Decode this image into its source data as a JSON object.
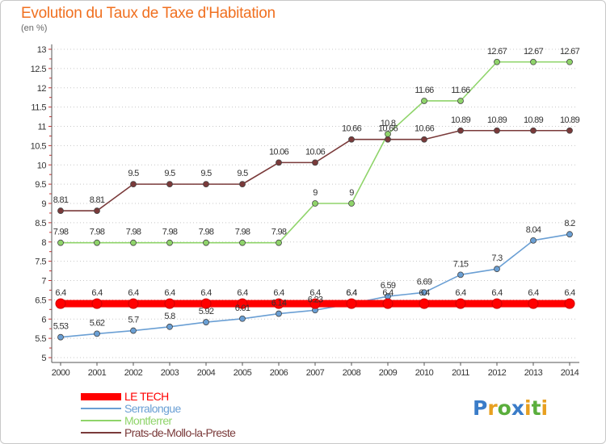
{
  "title": "Evolution du Taux de Taxe d'Habitation",
  "subtitle": "(en %)",
  "logo": {
    "letters": [
      {
        "ch": "P",
        "color": "#3a7cc8"
      },
      {
        "ch": "r",
        "color": "#e8a020"
      },
      {
        "ch": "o",
        "color": "#5aae3c"
      },
      {
        "ch": "x",
        "color": "#3a7cc8"
      },
      {
        "ch": "i",
        "color": "#e8a020"
      },
      {
        "ch": "t",
        "color": "#5aae3c"
      },
      {
        "ch": "i",
        "color": "#e8a020"
      }
    ]
  },
  "chart_data": {
    "type": "line",
    "x": [
      "2000",
      "2001",
      "2002",
      "2003",
      "2004",
      "2005",
      "2006",
      "2007",
      "2008",
      "2009",
      "2010",
      "2011",
      "2012",
      "2013",
      "2014"
    ],
    "ylim": [
      5,
      13
    ],
    "yticks": [
      "5",
      "5.5",
      "6",
      "6.5",
      "7",
      "7.5",
      "8",
      "8.5",
      "9",
      "9.5",
      "10",
      "10.5",
      "11",
      "11.5",
      "12",
      "12.5",
      "13"
    ],
    "grid": "horizontal dotted",
    "legend_position": "bottom-left",
    "series": [
      {
        "name": "LE TECH",
        "color": "#ff0000",
        "values": [
          6.4,
          6.4,
          6.4,
          6.4,
          6.4,
          6.4,
          6.4,
          6.4,
          6.4,
          6.4,
          6.4,
          6.4,
          6.4,
          6.4,
          6.4
        ],
        "labels": [
          "6.4",
          "6.4",
          "6.4",
          "6.4",
          "6.4",
          "6.4",
          "6.4",
          "6.4",
          "6.4",
          "6.4",
          "6.4",
          "6.4",
          "6.4",
          "6.4",
          "6.4"
        ]
      },
      {
        "name": "Serralongue",
        "color": "#6a9fd4",
        "values": [
          5.53,
          5.62,
          5.7,
          5.8,
          5.92,
          6.01,
          6.14,
          6.23,
          6.4,
          6.59,
          6.69,
          7.15,
          7.3,
          8.04,
          8.2
        ],
        "labels": [
          "5.53",
          "5.62",
          "5.7",
          "5.8",
          "5.92",
          "6.01",
          "6.14",
          "6.23",
          "6.4",
          "6.59",
          "6.69",
          "7.15",
          "7.3",
          "8.04",
          "8.2"
        ]
      },
      {
        "name": "Montferrer",
        "color": "#8fd46a",
        "values": [
          7.98,
          7.98,
          7.98,
          7.98,
          7.98,
          7.98,
          7.98,
          9,
          9,
          10.8,
          11.66,
          11.66,
          12.67,
          12.67,
          12.67
        ],
        "labels": [
          "7.98",
          "7.98",
          "7.98",
          "7.98",
          "7.98",
          "7.98",
          "7.98",
          "9",
          "9",
          "10.8",
          "11.66",
          "11.66",
          "12.67",
          "12.67",
          "12.67"
        ]
      },
      {
        "name": "Prats-de-Mollo-la-Preste",
        "color": "#7a3a3a",
        "values": [
          8.81,
          8.81,
          9.5,
          9.5,
          9.5,
          9.5,
          10.06,
          10.06,
          10.66,
          10.66,
          10.66,
          10.89,
          10.89,
          10.89,
          10.89
        ],
        "labels": [
          "8.81",
          "8.81",
          "9.5",
          "9.5",
          "9.5",
          "9.5",
          "10.06",
          "10.06",
          "10.66",
          "10.66",
          "10.66",
          "10.89",
          "10.89",
          "10.89",
          "10.89"
        ]
      }
    ]
  }
}
